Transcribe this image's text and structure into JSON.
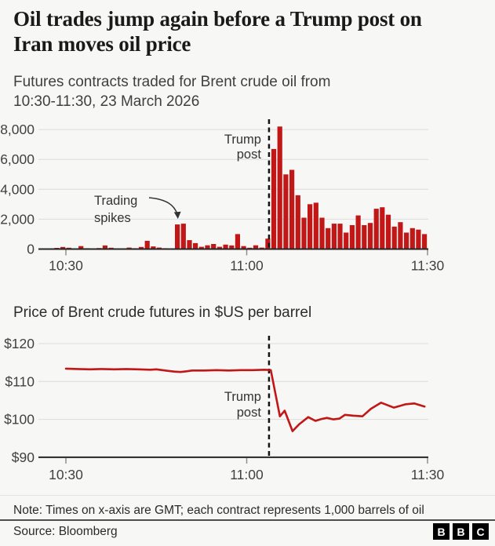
{
  "header": {
    "title_line1": "Oil trades jump again before a Trump post on",
    "title_line2": "Iran moves oil price",
    "subtitle_line1": "Futures contracts traded for Brent crude oil from",
    "subtitle_line2": "10:30-11:30, 23 March 2026"
  },
  "colors": {
    "accent_red": "#c11717",
    "grid": "#dcdcdc",
    "axis": "#262626",
    "tick": "#8f8f8f",
    "event_line": "#141414",
    "annotation_text": "#333333"
  },
  "chart_data": [
    {
      "type": "bar",
      "title": "Futures contracts traded for Brent crude oil from 10:30-11:30, 23 March 2026",
      "categories": [
        "10:28",
        "10:29",
        "10:30",
        "10:31",
        "10:32",
        "10:33",
        "10:34",
        "10:35",
        "10:36",
        "10:37",
        "10:38",
        "10:39",
        "10:40",
        "10:41",
        "10:42",
        "10:43",
        "10:44",
        "10:45",
        "10:46",
        "10:47",
        "10:48",
        "10:49",
        "10:50",
        "10:51",
        "10:52",
        "10:53",
        "10:54",
        "10:55",
        "10:56",
        "10:57",
        "10:58",
        "10:59",
        "11:00",
        "11:01",
        "11:02",
        "11:03",
        "11:04",
        "11:05",
        "11:06",
        "11:07",
        "11:08",
        "11:09",
        "11:10",
        "11:11",
        "11:12",
        "11:13",
        "11:14",
        "11:15",
        "11:16",
        "11:17",
        "11:18",
        "11:19",
        "11:20",
        "11:21",
        "11:22",
        "11:23",
        "11:24",
        "11:25",
        "11:26",
        "11:27",
        "11:28",
        "11:29"
      ],
      "values": [
        80,
        140,
        90,
        50,
        200,
        60,
        40,
        70,
        240,
        90,
        50,
        40,
        100,
        60,
        140,
        550,
        180,
        100,
        60,
        30,
        1650,
        1700,
        600,
        400,
        150,
        250,
        340,
        150,
        300,
        240,
        1000,
        200,
        90,
        250,
        100,
        700,
        6700,
        8200,
        5000,
        5300,
        3600,
        2100,
        3000,
        3100,
        2100,
        1400,
        1700,
        1700,
        1100,
        1600,
        2250,
        1600,
        1750,
        2700,
        2800,
        2300,
        1500,
        1800,
        1100,
        1400,
        1300,
        1000
      ],
      "ylim": [
        0,
        8000
      ],
      "yticks": [
        {
          "v": 0,
          "label": "0"
        },
        {
          "v": 2000,
          "label": "2,000"
        },
        {
          "v": 4000,
          "label": "4,000"
        },
        {
          "v": 6000,
          "label": "6,000"
        },
        {
          "v": 8000,
          "label": "8,000"
        }
      ],
      "xticks": [
        {
          "m": 0,
          "label": "10:30"
        },
        {
          "m": 30,
          "label": "11:00"
        },
        {
          "m": 60,
          "label": "11:30"
        }
      ],
      "start_minute": -2,
      "event_line": {
        "minute": 33.7,
        "label_lines": [
          "Trump",
          "post"
        ]
      },
      "callout": {
        "label_lines": [
          "Trading",
          "spikes"
        ],
        "points_to_time": "10:48"
      },
      "grid": true,
      "legend": "none"
    },
    {
      "type": "line",
      "title": "Price of Brent crude futures in $US per barrel",
      "points_minutes_from_1030_vs_usd": [
        [
          0,
          113.4
        ],
        [
          2,
          113.3
        ],
        [
          4,
          113.2
        ],
        [
          6,
          113.3
        ],
        [
          8,
          113.2
        ],
        [
          10,
          113.3
        ],
        [
          12,
          113.2
        ],
        [
          14,
          113.1
        ],
        [
          15,
          113.2
        ],
        [
          16,
          113.0
        ],
        [
          17,
          112.8
        ],
        [
          18,
          112.6
        ],
        [
          19,
          112.5
        ],
        [
          20,
          112.7
        ],
        [
          21,
          112.9
        ],
        [
          23,
          112.9
        ],
        [
          25,
          113.0
        ],
        [
          27,
          112.9
        ],
        [
          29,
          113.0
        ],
        [
          31,
          113.0
        ],
        [
          33,
          113.1
        ],
        [
          34,
          113.0
        ],
        [
          35.5,
          100.8
        ],
        [
          36.3,
          102.3
        ],
        [
          37.6,
          96.9
        ],
        [
          38.7,
          98.7
        ],
        [
          40.2,
          100.6
        ],
        [
          41.4,
          99.6
        ],
        [
          42.4,
          100.1
        ],
        [
          43.3,
          100.4
        ],
        [
          44.4,
          100.0
        ],
        [
          45.4,
          100.2
        ],
        [
          46.3,
          101.2
        ],
        [
          47.6,
          101.0
        ],
        [
          49.2,
          100.8
        ],
        [
          50.6,
          102.8
        ],
        [
          52.3,
          104.4
        ],
        [
          54.4,
          103.1
        ],
        [
          56.4,
          104.0
        ],
        [
          57.8,
          104.2
        ],
        [
          59.5,
          103.4
        ]
      ],
      "ylim": [
        90,
        120
      ],
      "yticks": [
        {
          "v": 90,
          "label": "$90"
        },
        {
          "v": 100,
          "label": "$100"
        },
        {
          "v": 110,
          "label": "$110"
        },
        {
          "v": 120,
          "label": "$120"
        }
      ],
      "xticks": [
        {
          "m": 0,
          "label": "10:30"
        },
        {
          "m": 30,
          "label": "11:00"
        },
        {
          "m": 60,
          "label": "11:30"
        }
      ],
      "event_line": {
        "minute": 33.7,
        "label_lines": [
          "Trump",
          "post"
        ]
      },
      "grid": true,
      "legend": "none"
    }
  ],
  "footer": {
    "note": "Note: Times on x-axis are GMT; each contract represents 1,000 barrels of oil",
    "source": "Source: Bloomberg",
    "logo_letters": [
      "B",
      "B",
      "C"
    ]
  }
}
